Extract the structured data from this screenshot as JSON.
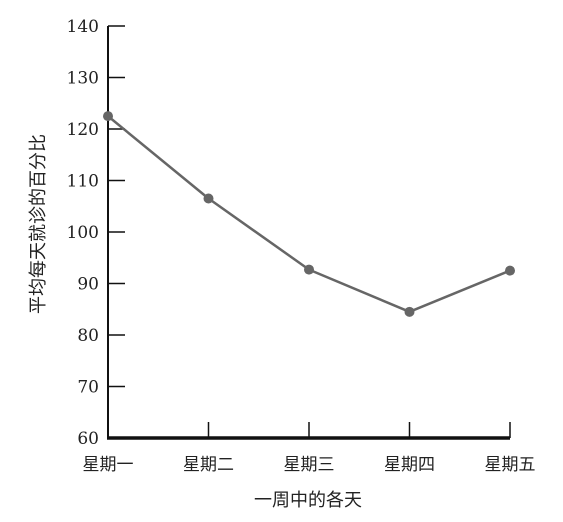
{
  "chart_data": {
    "type": "line",
    "title": "",
    "xlabel": "一周中的各天",
    "ylabel": "平均每天就诊的百分比",
    "categories": [
      "星期一",
      "星期二",
      "星期三",
      "星期四",
      "星期五"
    ],
    "series": [
      {
        "values": [
          122.5,
          106.5,
          92.7,
          84.5,
          92.5
        ]
      }
    ],
    "ylim": [
      60,
      140
    ],
    "yticks": [
      60,
      70,
      80,
      90,
      100,
      110,
      120,
      130,
      140
    ],
    "grid": false,
    "legend": "none",
    "line_color": "#666666",
    "axis_color": "#111111"
  }
}
